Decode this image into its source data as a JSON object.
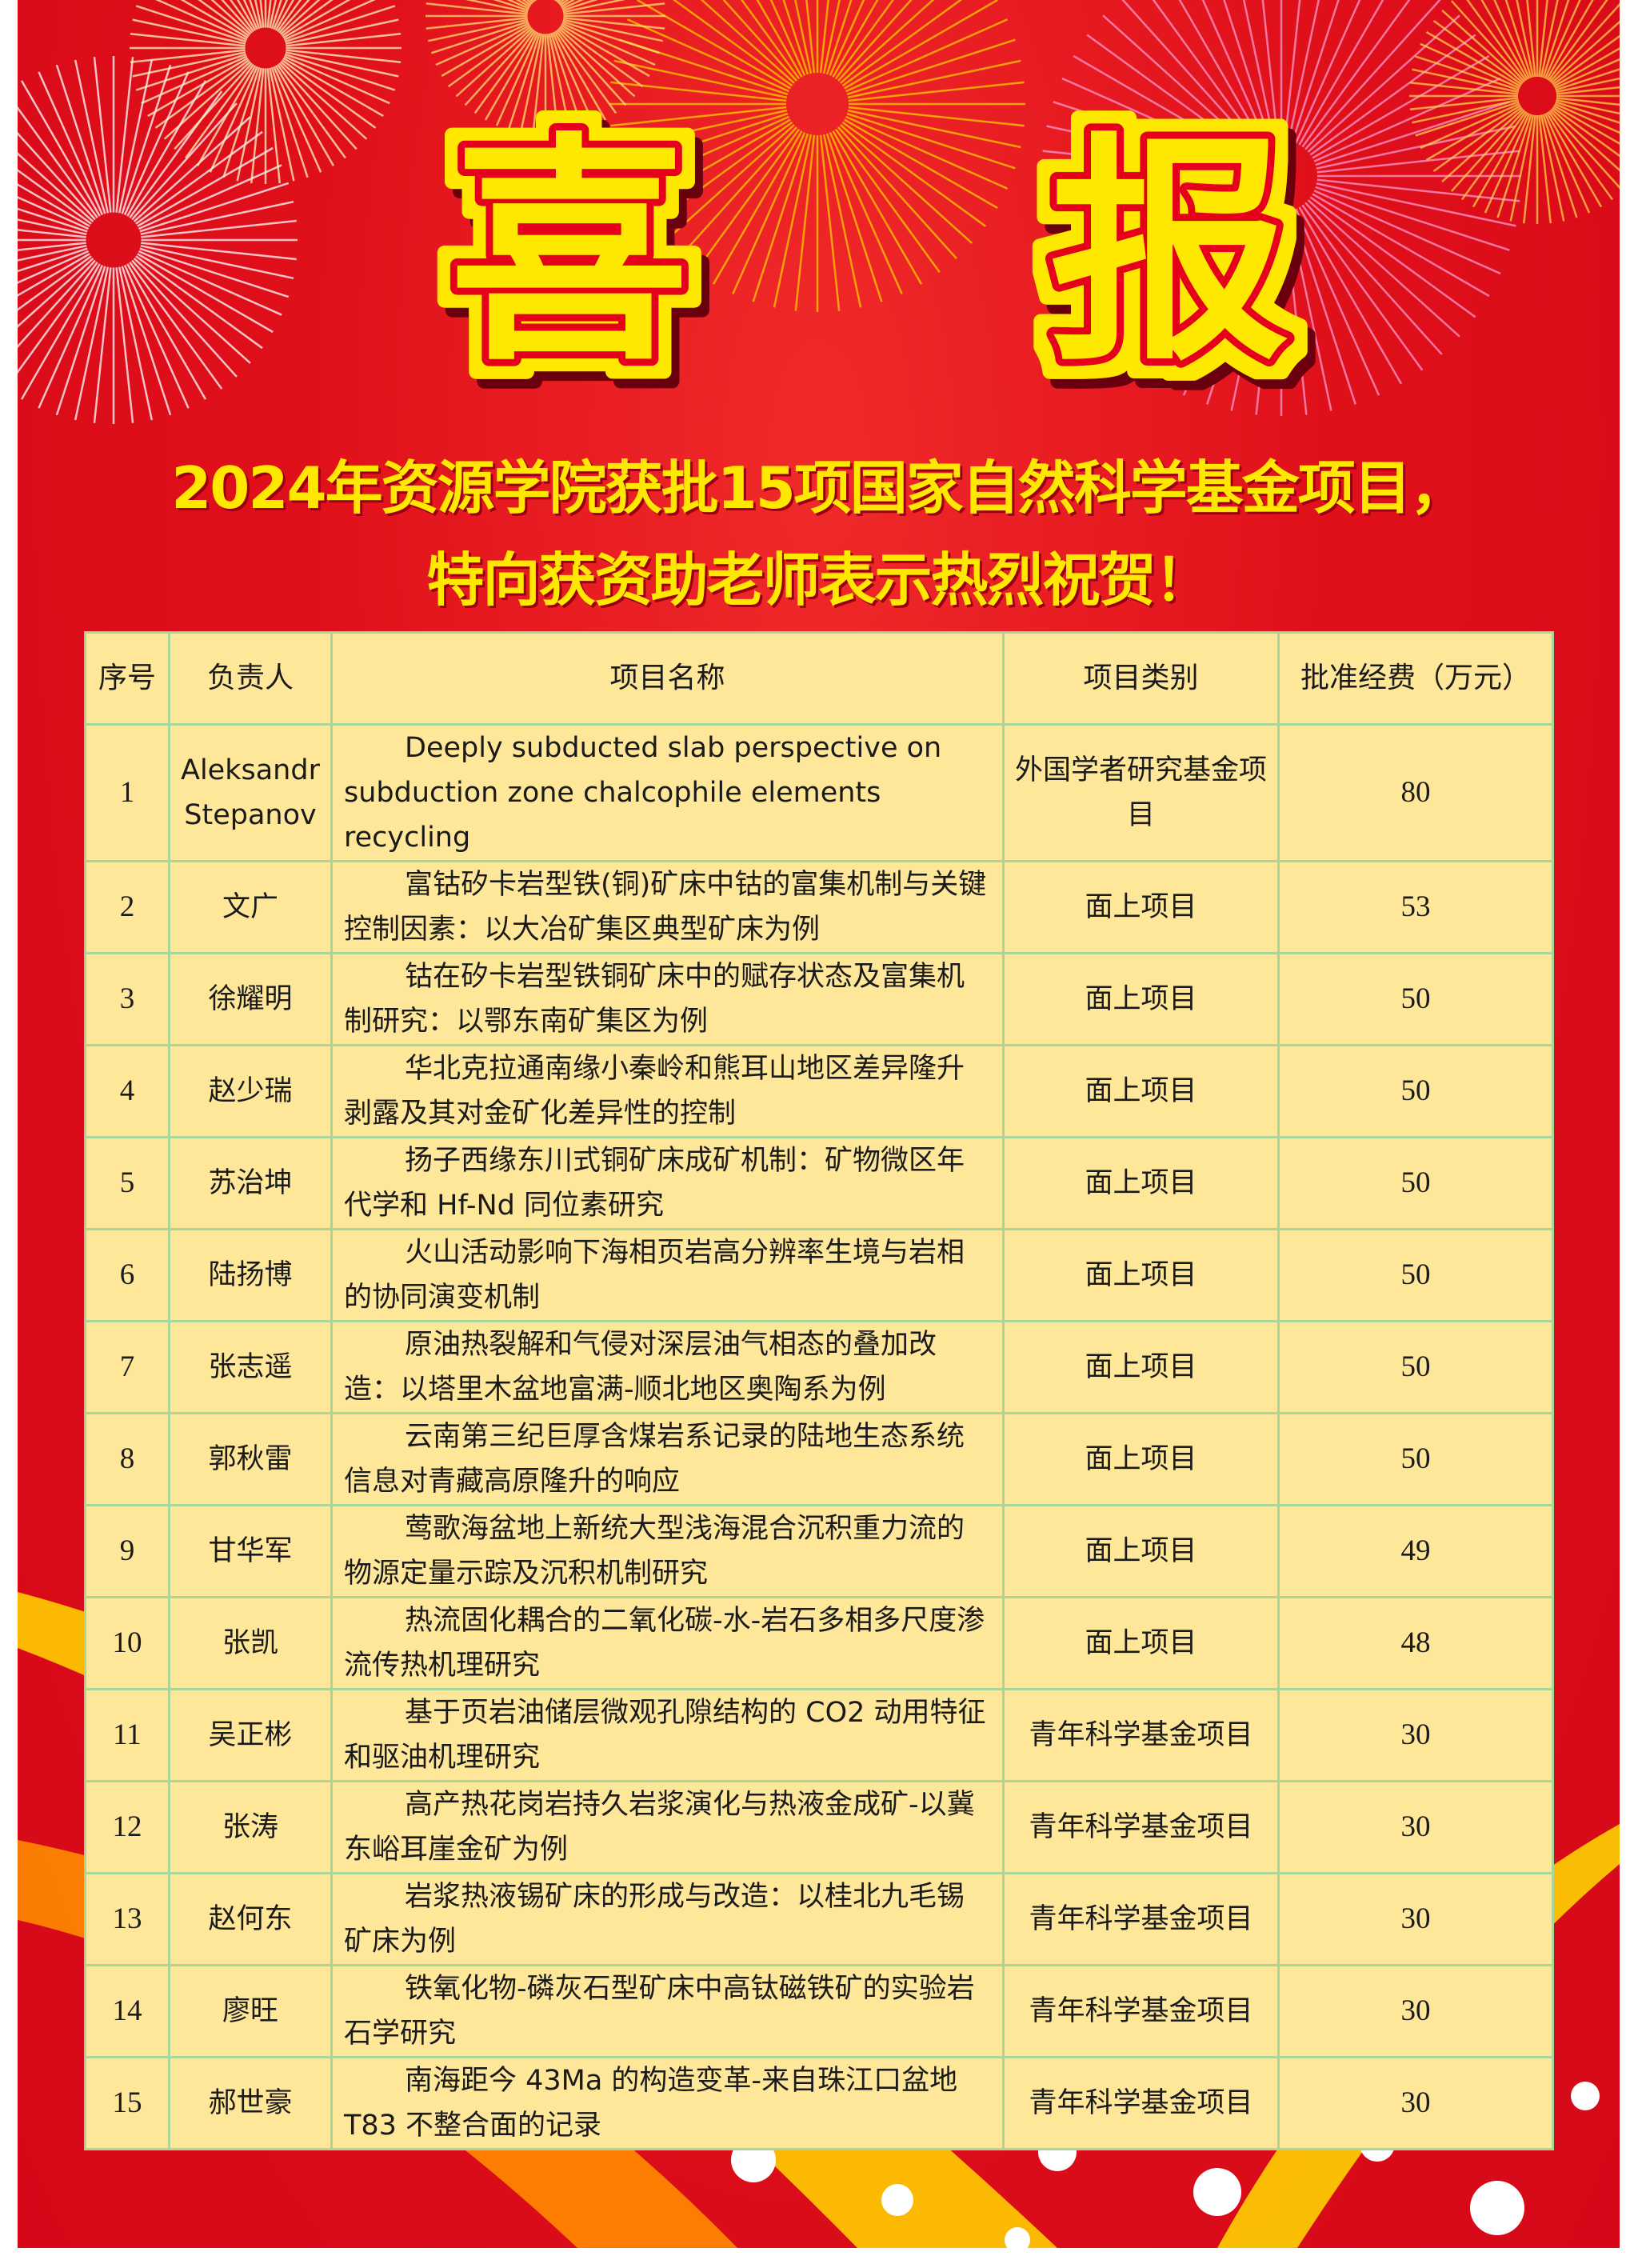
{
  "headline": {
    "char1": "喜",
    "char2": "报"
  },
  "subtitle": {
    "line1": "2024年资源学院获批15项国家自然科学基金项目，",
    "line2": "特向获资助老师表示热烈祝贺！"
  },
  "table": {
    "headers": {
      "index": "序号",
      "leader": "负责人",
      "project": "项目名称",
      "category": "项目类别",
      "funding": "批准经费（万元）"
    },
    "rows": [
      {
        "index": "1",
        "leader": "Aleksandr Stepanov",
        "project": "Deeply subducted slab perspective on subduction zone chalcophile elements recycling",
        "category": "外国学者研究基金项目",
        "funding": "80"
      },
      {
        "index": "2",
        "leader": "文广",
        "project": "富钴矽卡岩型铁(铜)矿床中钴的富集机制与关键控制因素：以大冶矿集区典型矿床为例",
        "category": "面上项目",
        "funding": "53"
      },
      {
        "index": "3",
        "leader": "徐耀明",
        "project": "钴在矽卡岩型铁铜矿床中的赋存状态及富集机制研究：以鄂东南矿集区为例",
        "category": "面上项目",
        "funding": "50"
      },
      {
        "index": "4",
        "leader": "赵少瑞",
        "project": "华北克拉通南缘小秦岭和熊耳山地区差异隆升剥露及其对金矿化差异性的控制",
        "category": "面上项目",
        "funding": "50"
      },
      {
        "index": "5",
        "leader": "苏治坤",
        "project": "扬子西缘东川式铜矿床成矿机制：矿物微区年代学和 Hf-Nd 同位素研究",
        "category": "面上项目",
        "funding": "50"
      },
      {
        "index": "6",
        "leader": "陆扬博",
        "project": "火山活动影响下海相页岩高分辨率生境与岩相的协同演变机制",
        "category": "面上项目",
        "funding": "50"
      },
      {
        "index": "7",
        "leader": "张志遥",
        "project": "原油热裂解和气侵对深层油气相态的叠加改造：以塔里木盆地富满-顺北地区奥陶系为例",
        "category": "面上项目",
        "funding": "50"
      },
      {
        "index": "8",
        "leader": "郭秋雷",
        "project": "云南第三纪巨厚含煤岩系记录的陆地生态系统信息对青藏高原隆升的响应",
        "category": "面上项目",
        "funding": "50"
      },
      {
        "index": "9",
        "leader": "甘华军",
        "project": "莺歌海盆地上新统大型浅海混合沉积重力流的物源定量示踪及沉积机制研究",
        "category": "面上项目",
        "funding": "49"
      },
      {
        "index": "10",
        "leader": "张凯",
        "project": "热流固化耦合的二氧化碳-水-岩石多相多尺度渗流传热机理研究",
        "category": "面上项目",
        "funding": "48"
      },
      {
        "index": "11",
        "leader": "吴正彬",
        "project": "基于页岩油储层微观孔隙结构的 CO2 动用特征和驱油机理研究",
        "category": "青年科学基金项目",
        "funding": "30"
      },
      {
        "index": "12",
        "leader": "张涛",
        "project": "高产热花岗岩持久岩浆演化与热液金成矿-以冀东峪耳崖金矿为例",
        "category": "青年科学基金项目",
        "funding": "30"
      },
      {
        "index": "13",
        "leader": "赵何东",
        "project": "岩浆热液锡矿床的形成与改造：以桂北九毛锡矿床为例",
        "category": "青年科学基金项目",
        "funding": "30"
      },
      {
        "index": "14",
        "leader": "廖旺",
        "project": "铁氧化物-磷灰石型矿床中高钛磁铁矿的实验岩石学研究",
        "category": "青年科学基金项目",
        "funding": "30"
      },
      {
        "index": "15",
        "leader": "郝世豪",
        "project": "南海距今 43Ma 的构造变革-来自珠江口盆地 T83 不整合面的记录",
        "category": "青年科学基金项目",
        "funding": "30"
      }
    ]
  },
  "colors": {
    "background": "#d40818",
    "headline_fill": "#ffe800",
    "table_bg": "#ffe79a",
    "table_border": "#a8d59a",
    "subtitle": "#ffe800"
  }
}
